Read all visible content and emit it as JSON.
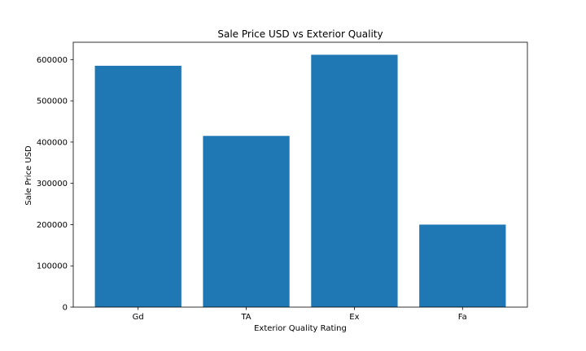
{
  "chart_data": {
    "type": "bar",
    "title": "Sale Price USD vs Exterior Quality",
    "xlabel": "Exterior Quality Rating",
    "ylabel": "Sale Price USD",
    "categories": [
      "Gd",
      "TA",
      "Ex",
      "Fa"
    ],
    "values": [
      585000,
      415000,
      611657,
      200000
    ],
    "ylim": [
      0,
      642000
    ],
    "yticks": [
      0,
      100000,
      200000,
      300000,
      400000,
      500000,
      600000
    ],
    "ytick_labels": [
      "0",
      "100000",
      "200000",
      "300000",
      "400000",
      "500000",
      "600000"
    ],
    "bar_color": "#1f77b4",
    "grid": false
  }
}
